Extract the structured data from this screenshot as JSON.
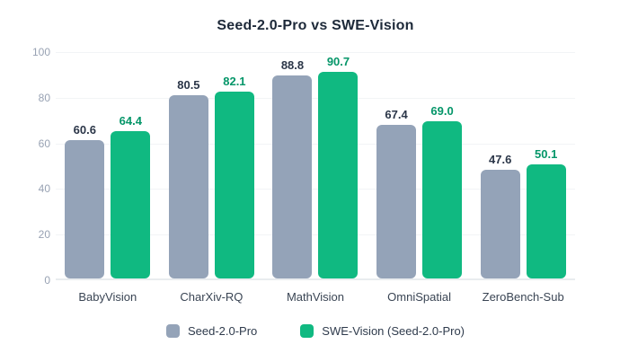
{
  "figure": {
    "background_color": "#ffffff"
  },
  "chart_data": {
    "type": "bar",
    "title": "Seed-2.0-Pro vs SWE-Vision",
    "categories": [
      "BabyVision",
      "CharXiv-RQ",
      "MathVision",
      "OmniSpatial",
      "ZeroBench-Sub"
    ],
    "series": [
      {
        "name": "Seed-2.0-Pro",
        "values": [
          60.6,
          80.5,
          88.8,
          67.4,
          47.6
        ],
        "labels": [
          "60.6",
          "80.5",
          "88.8",
          "67.4",
          "47.6"
        ],
        "color": "#94a3b8",
        "value_label_color": "#2b3648"
      },
      {
        "name": "SWE-Vision (Seed-2.0-Pro)",
        "values": [
          64.4,
          82.1,
          90.7,
          69.0,
          50.1
        ],
        "labels": [
          "64.4",
          "82.1",
          "90.7",
          "69.0",
          "50.1"
        ],
        "color": "#10b981",
        "value_label_color": "#059669"
      }
    ],
    "xlabel": "",
    "ylabel": "",
    "ylim": [
      0,
      100
    ],
    "yticks": [
      0,
      20,
      40,
      60,
      80,
      100
    ],
    "grid": "horizontal",
    "gridline_color": "#f2f4f6",
    "axis_line_color": "#e9ecef",
    "tick_label_color": "#98a2b3",
    "category_label_color": "#3a4554",
    "title_color": "#1d2939",
    "legend_position": "bottom",
    "bar_corner_radius_px": 6
  }
}
